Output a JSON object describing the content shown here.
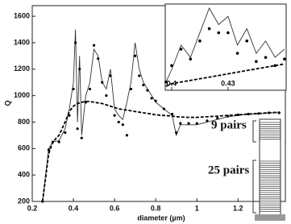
{
  "chart_data": [
    {
      "type": "line",
      "xlabel": "diameter (µm)",
      "ylabel": "Q",
      "x": [
        0.25,
        0.28,
        0.3,
        0.33,
        0.36,
        0.38,
        0.4,
        0.41,
        0.42,
        0.43,
        0.44,
        0.46,
        0.48,
        0.5,
        0.52,
        0.54,
        0.56,
        0.58,
        0.6,
        0.62,
        0.64,
        0.66,
        0.68,
        0.7,
        0.72,
        0.74,
        0.76,
        0.78,
        0.8,
        0.84,
        0.88,
        0.9,
        0.92,
        0.96,
        1.0,
        1.05,
        1.1,
        1.15,
        1.2,
        1.25,
        1.3,
        1.35,
        1.4
      ],
      "series": [
        {
          "style": "solid",
          "color": "#333333",
          "values": [
            200,
            600,
            650,
            660,
            750,
            900,
            1100,
            1500,
            800,
            1300,
            700,
            1000,
            1100,
            1350,
            1300,
            1100,
            1050,
            1200,
            900,
            850,
            820,
            950,
            1100,
            1400,
            1200,
            1100,
            1050,
            1000,
            950,
            900,
            850,
            700,
            780,
            780,
            780,
            800,
            820,
            840,
            850,
            860,
            860,
            870,
            870
          ]
        },
        {
          "style": "dots",
          "color": "#000000",
          "values": [
            200,
            590,
            650,
            650,
            720,
            850,
            1050,
            1400,
            750,
            1200,
            680,
            950,
            1050,
            1380,
            1280,
            1100,
            1000,
            1150,
            850,
            800,
            780,
            700,
            1050,
            1300,
            1150,
            1080,
            1040,
            980,
            960,
            900,
            860,
            720,
            790,
            790,
            790,
            810,
            830,
            845,
            855,
            860,
            865,
            870,
            870
          ]
        },
        {
          "style": "dashed",
          "color": "#000000",
          "values": [
            200,
            560,
            650,
            700,
            800,
            880,
            920,
            930,
            940,
            945,
            950,
            955,
            955,
            950,
            945,
            940,
            930,
            920,
            910,
            900,
            895,
            890,
            885,
            880,
            875,
            870,
            865,
            860,
            855,
            850,
            845,
            840,
            838,
            836,
            835,
            840,
            845,
            850,
            855,
            860,
            865,
            870,
            875
          ]
        }
      ],
      "xlim": [
        0.2,
        1.43
      ],
      "xticks": [
        0.2,
        0.4,
        0.6,
        0.8,
        1,
        1.2
      ],
      "ylim": [
        200,
        1680
      ],
      "yticks": [
        200,
        400,
        600,
        800,
        1000,
        1200,
        1400,
        1600
      ],
      "annotations": [
        "9 pairs",
        "25 pairs"
      ]
    },
    {
      "type": "line",
      "x": [
        0.397,
        0.4,
        0.405,
        0.41,
        0.415,
        0.42,
        0.425,
        0.43,
        0.435,
        0.44,
        0.445,
        0.45,
        0.455,
        0.46
      ],
      "series": [
        {
          "style": "solid",
          "color": "#333333",
          "values": [
            10,
            25,
            55,
            40,
            70,
            100,
            80,
            90,
            55,
            75,
            45,
            60,
            40,
            50
          ]
        },
        {
          "style": "dots",
          "color": "#000000",
          "values": [
            10,
            30,
            50,
            38,
            60,
            75,
            70,
            70,
            45,
            60,
            35,
            40,
            30,
            38
          ]
        },
        {
          "style": "dashed",
          "color": "#000000",
          "values": [
            5,
            8,
            10,
            12,
            14,
            16,
            18,
            20,
            22,
            24,
            26,
            28,
            30,
            32
          ]
        }
      ],
      "xlim": [
        0.3966,
        0.4609
      ],
      "xticks": [
        0.4,
        0.43
      ],
      "ylim": [
        0,
        105
      ]
    }
  ]
}
